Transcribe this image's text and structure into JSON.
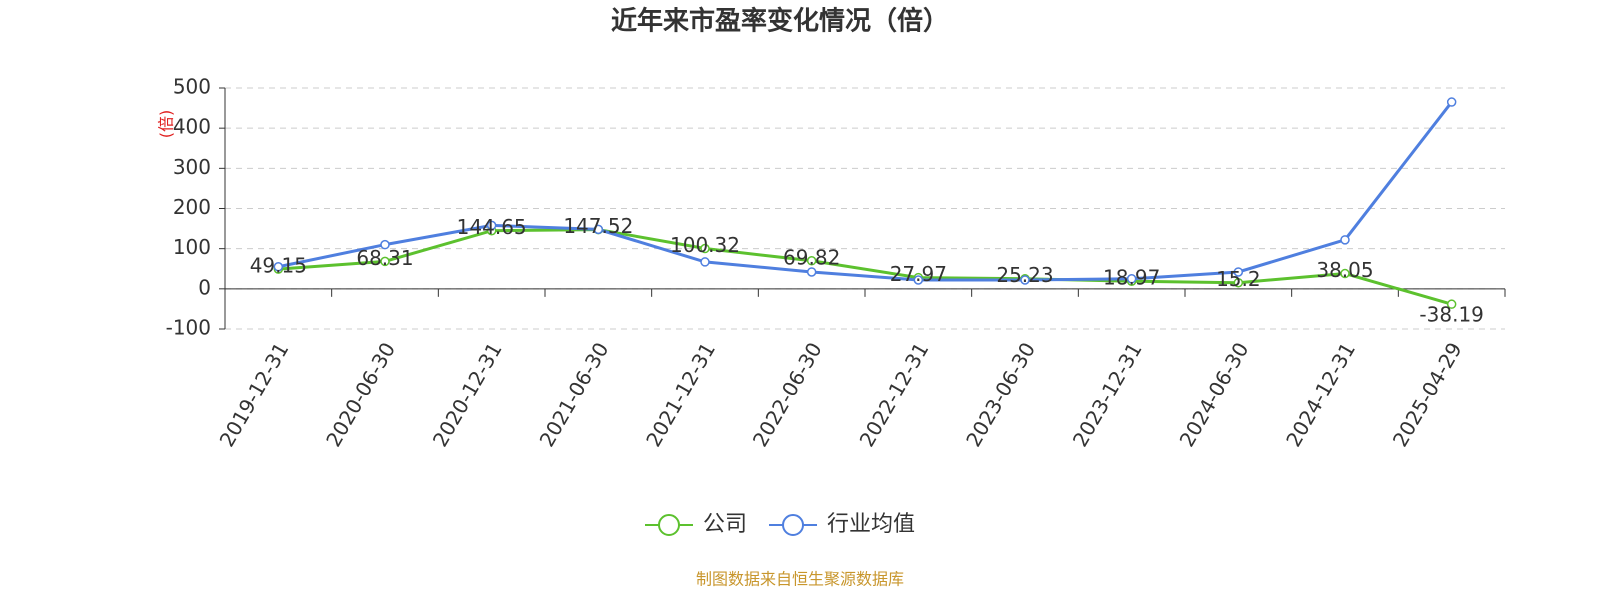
{
  "chart_data": {
    "type": "line",
    "title": "近年来市盈率变化情况（倍）",
    "y_label": "(倍)",
    "categories": [
      "2019-12-31",
      "2020-06-30",
      "2020-12-31",
      "2021-06-30",
      "2021-12-31",
      "2022-06-30",
      "2022-12-31",
      "2023-06-30",
      "2023-12-31",
      "2024-06-30",
      "2024-12-31",
      "2025-04-29"
    ],
    "series": [
      {
        "name": "公司",
        "color": "#5cc12e",
        "values": [
          49.15,
          68.31,
          144.65,
          147.52,
          100.32,
          69.82,
          27.97,
          25.23,
          18.97,
          15.2,
          38.05,
          -38.19
        ]
      },
      {
        "name": "行业均值",
        "color": "#4f7fdf",
        "values": [
          55,
          110,
          158,
          148,
          67,
          42,
          22,
          22,
          25,
          42,
          122,
          465
        ]
      }
    ],
    "ylim": [
      -100,
      500
    ],
    "yticks": [
      -100,
      0,
      100,
      200,
      300,
      400,
      500
    ],
    "grid": true,
    "source": "制图数据来自恒生聚源数据库"
  }
}
